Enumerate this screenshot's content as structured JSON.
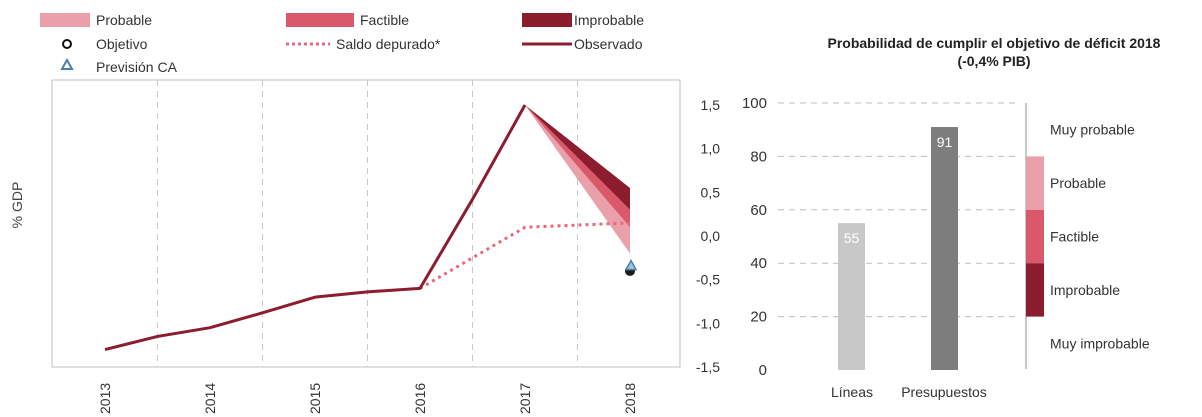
{
  "legend": {
    "probable": "Probable",
    "factible": "Factible",
    "improbable": "Improbable",
    "objetivo": "Objetivo",
    "saldo": "Saldo depurado*",
    "observado": "Observado",
    "prevision": "Previsión CA"
  },
  "colors": {
    "improbable": "#8c1d2e",
    "factible": "#d9596a",
    "probable": "#eaa0aa",
    "observado": "#8c1d2e",
    "saldo": "#e56a7a",
    "bar_lineas": "#c8c8c8",
    "bar_presupuestos": "#7d7d7d",
    "prevision": "#4a7fa8"
  },
  "chart_data": [
    {
      "type": "line",
      "ylabel": "% GDP",
      "x": [
        "2013",
        "2014",
        "2015",
        "2016",
        "2017",
        "2018"
      ],
      "ylim": [
        -1.5,
        1.5
      ],
      "yticks": [
        "1,5",
        "1,0",
        "0,5",
        "0,0",
        "-0,5",
        "-1,0",
        "-1,5"
      ],
      "ytick_values": [
        1.5,
        1.0,
        0.5,
        0.0,
        -0.5,
        -1.0,
        -1.5
      ],
      "series": [
        {
          "name": "Observado",
          "x": [
            2013,
            2013.5,
            2014,
            2014.5,
            2015,
            2015.5,
            2016,
            2016.5,
            2017
          ],
          "values": [
            -1.3,
            -1.15,
            -1.05,
            -0.88,
            -0.7,
            -0.64,
            -0.6,
            0.42,
            1.5
          ]
        },
        {
          "name": "Saldo depurado*",
          "x": [
            2016,
            2017,
            2018
          ],
          "values": [
            -0.6,
            0.1,
            0.15
          ]
        }
      ],
      "fan": {
        "from": {
          "x": 2017,
          "y": 1.5
        },
        "at": 2018,
        "improbable": [
          0.3,
          0.55
        ],
        "factible": [
          0.1,
          0.3
        ],
        "probable": [
          -0.2,
          0.1
        ]
      },
      "objetivo": {
        "x": 2018,
        "y": -0.4
      },
      "prevision_ca": {
        "x": 2018,
        "y": -0.35
      }
    },
    {
      "type": "bar",
      "title": "Probabilidad de cumplir el objetivo de déficit 2018",
      "subtitle": "(-0,4% PIB)",
      "categories": [
        "Líneas",
        "Presupuestos"
      ],
      "values": [
        55,
        91
      ],
      "value_labels": [
        "55",
        "91"
      ],
      "ylim": [
        0,
        100
      ],
      "yticks": [
        "100",
        "80",
        "60",
        "40",
        "20",
        "0"
      ],
      "ytick_values": [
        100,
        80,
        60,
        40,
        20,
        0
      ],
      "zones": [
        {
          "label": "Muy probable",
          "from": 80,
          "to": 100
        },
        {
          "label": "Probable",
          "from": 60,
          "to": 80
        },
        {
          "label": "Factible",
          "from": 40,
          "to": 60
        },
        {
          "label": "Improbable",
          "from": 20,
          "to": 40
        },
        {
          "label": "Muy improbable",
          "from": 0,
          "to": 20
        }
      ]
    }
  ]
}
